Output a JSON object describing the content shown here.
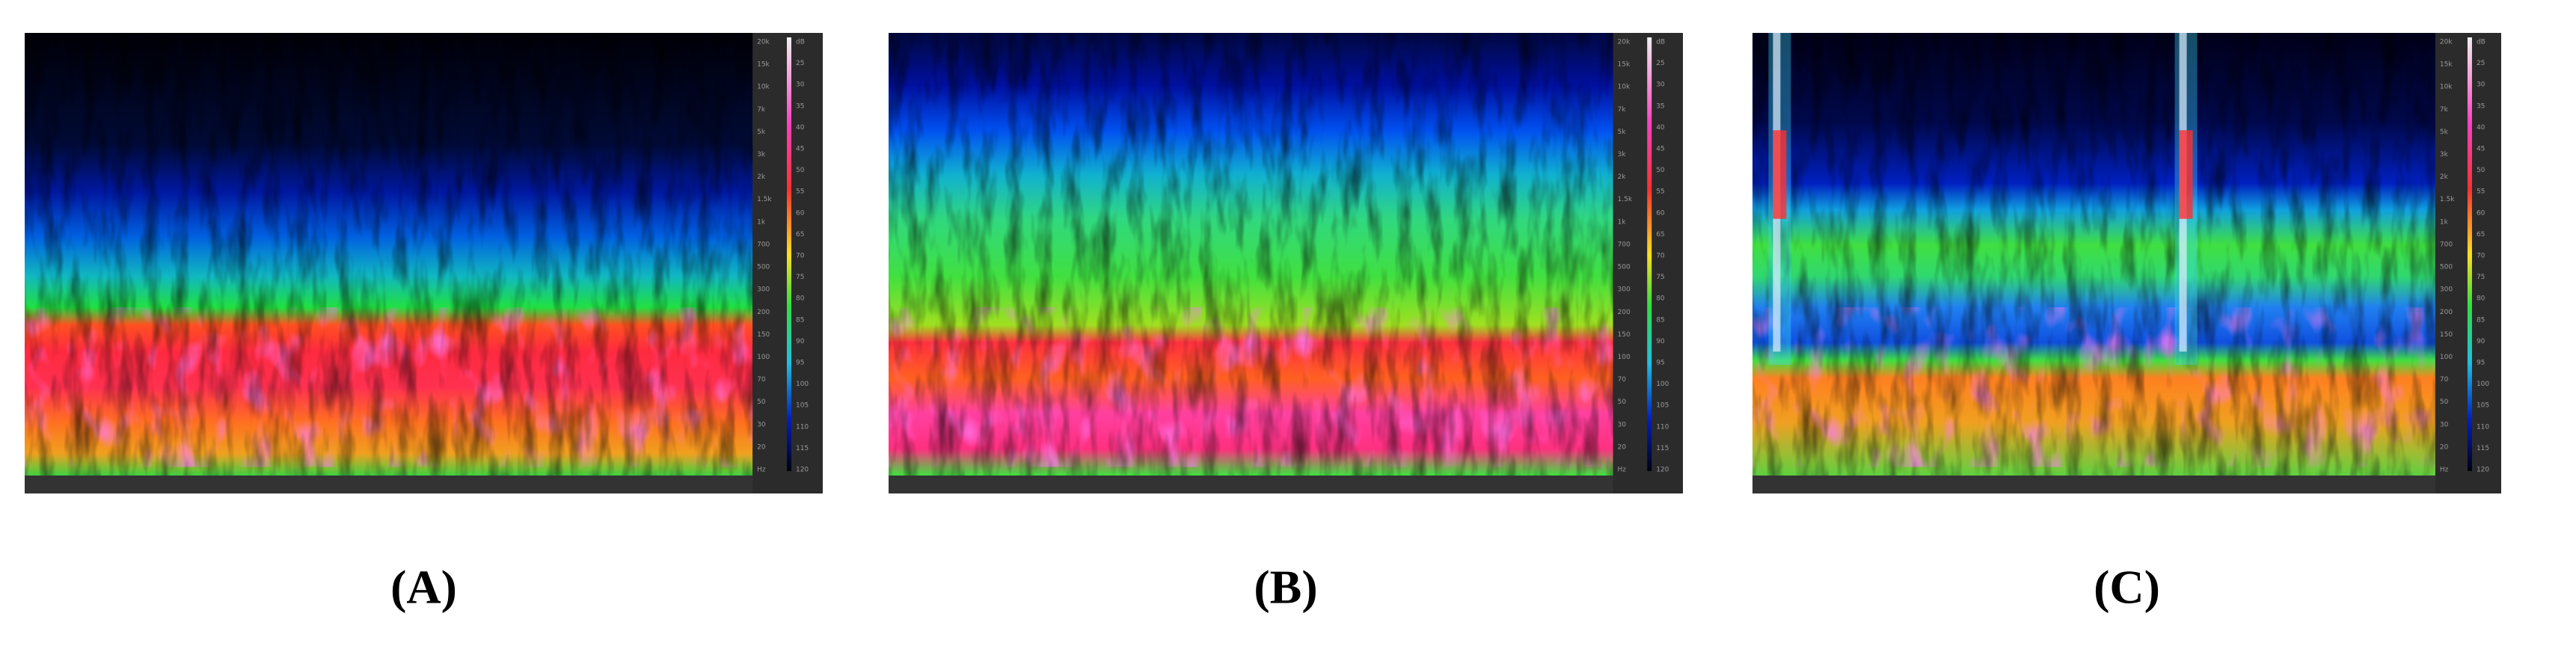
{
  "panels": [
    {
      "label": "(A)",
      "freq_labels": [
        "20k",
        "15k",
        "10k",
        "7k",
        "5k",
        "3k",
        "2k",
        "1.5k",
        "1k",
        "700",
        "500",
        "300",
        "200",
        "150",
        "100",
        "70",
        "50",
        "30",
        "20",
        "Hz"
      ],
      "db_labels": [
        "dB",
        "25",
        "30",
        "35",
        "40",
        "45",
        "50",
        "55",
        "60",
        "65",
        "70",
        "75",
        "80",
        "85",
        "90",
        "95",
        "100",
        "105",
        "110",
        "115",
        "120"
      ]
    },
    {
      "label": "(B)",
      "freq_labels": [
        "20k",
        "15k",
        "10k",
        "7k",
        "5k",
        "3k",
        "2k",
        "1.5k",
        "1k",
        "700",
        "500",
        "300",
        "200",
        "150",
        "100",
        "70",
        "50",
        "30",
        "20",
        "Hz"
      ],
      "db_labels": [
        "dB",
        "25",
        "30",
        "35",
        "40",
        "45",
        "50",
        "55",
        "60",
        "65",
        "70",
        "75",
        "80",
        "85",
        "90",
        "95",
        "100",
        "105",
        "110",
        "115",
        "120"
      ]
    },
    {
      "label": "(C)",
      "freq_labels": [
        "20k",
        "15k",
        "10k",
        "7k",
        "5k",
        "3k",
        "2k",
        "1.5k",
        "1k",
        "700",
        "500",
        "300",
        "200",
        "150",
        "100",
        "70",
        "50",
        "30",
        "20",
        "Hz"
      ],
      "db_labels": [
        "dB",
        "25",
        "30",
        "35",
        "40",
        "45",
        "50",
        "55",
        "60",
        "65",
        "70",
        "75",
        "80",
        "85",
        "90",
        "95",
        "100",
        "105",
        "110",
        "115",
        "120"
      ]
    }
  ]
}
